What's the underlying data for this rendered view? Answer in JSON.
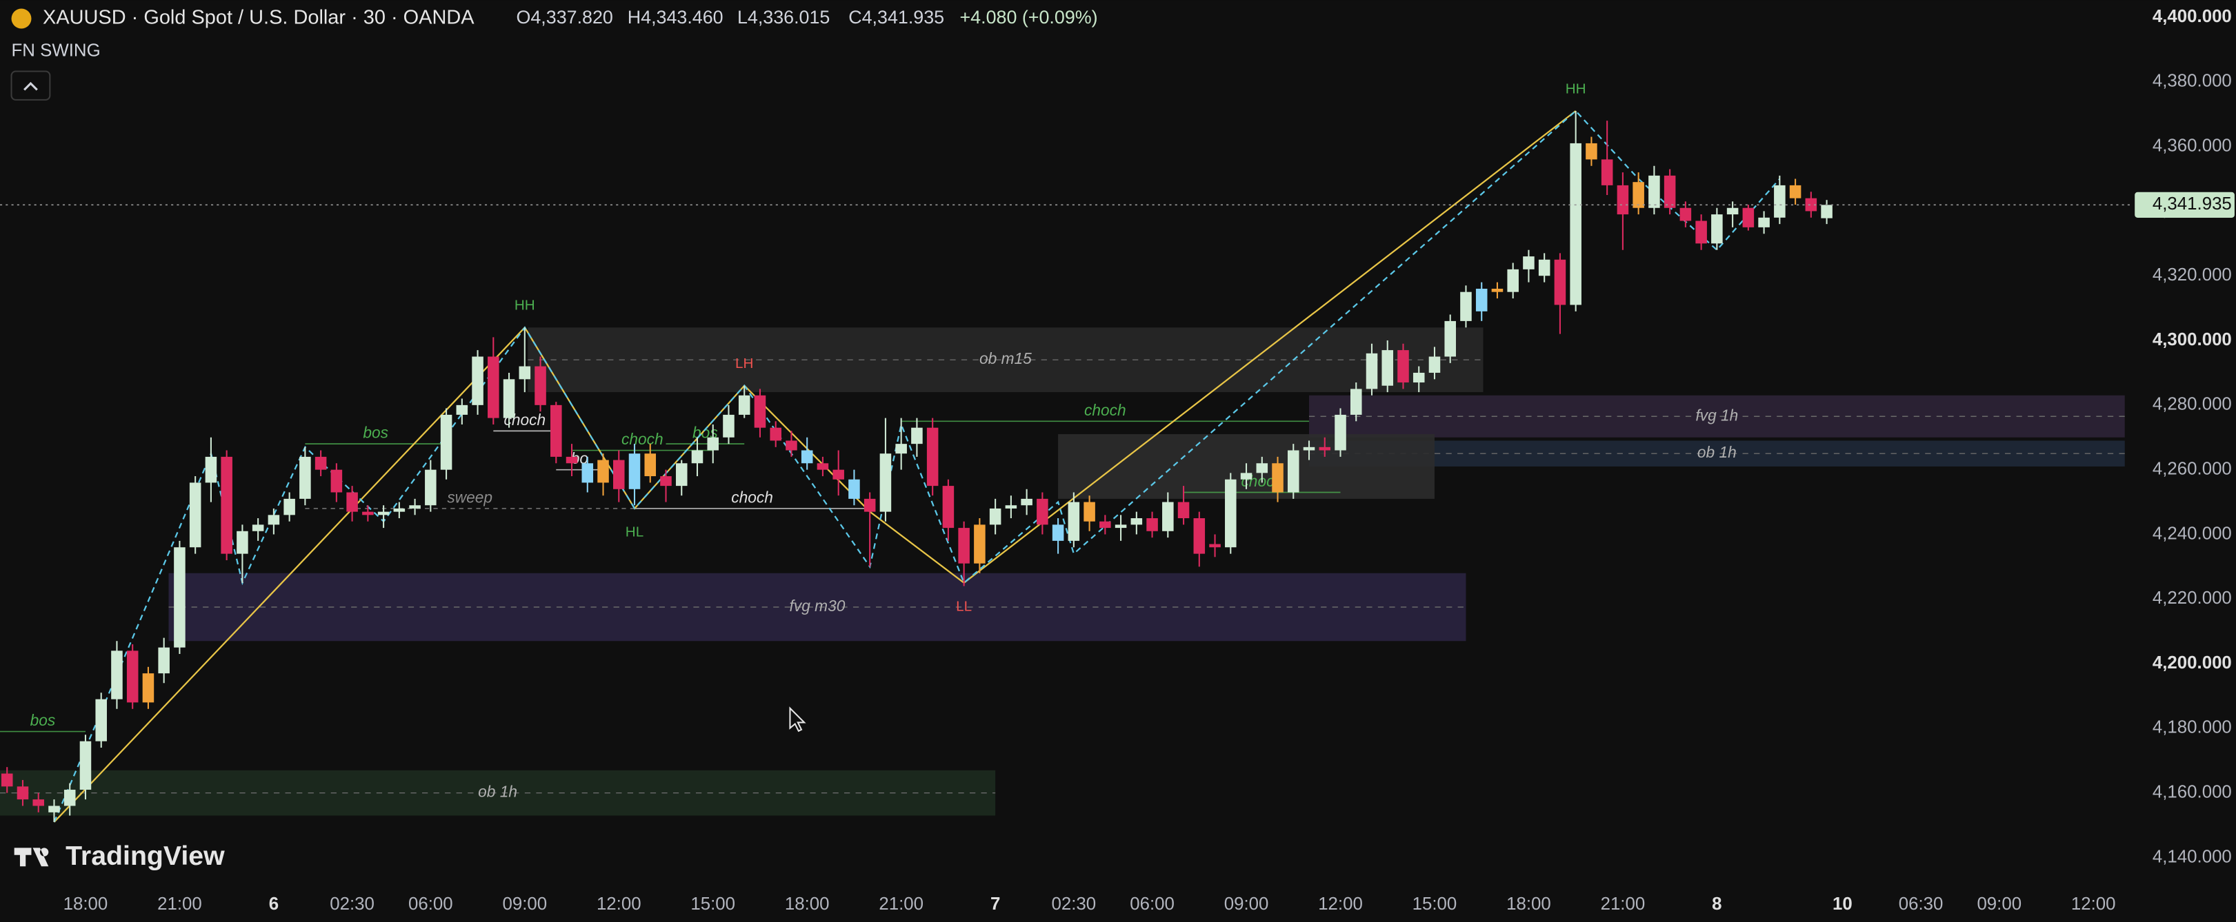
{
  "header": {
    "symbol": "XAUUSD · Gold Spot / U.S. Dollar · 30 · OANDA",
    "ohlc": [
      "O4,337.820",
      "H4,343.460",
      "L4,336.015",
      "C4,341.935"
    ],
    "change": "+4.080 (+0.09%)",
    "indicator": "FN SWING",
    "logo": "TradingView"
  },
  "chart_data": {
    "type": "candlestick",
    "xlim": [
      -5.45,
      130
    ],
    "ylim": [
      4132,
      4405.3
    ],
    "xticks": [
      {
        "value": 0,
        "label": "18:00"
      },
      {
        "value": 6,
        "label": "21:00"
      },
      {
        "value": 12,
        "label": "6"
      },
      {
        "value": 17,
        "label": "02:30"
      },
      {
        "value": 22,
        "label": "06:00"
      },
      {
        "value": 28,
        "label": "09:00"
      },
      {
        "value": 34,
        "label": "12:00"
      },
      {
        "value": 40,
        "label": "15:00"
      },
      {
        "value": 46,
        "label": "18:00"
      },
      {
        "value": 52,
        "label": "21:00"
      },
      {
        "value": 58,
        "label": "7"
      },
      {
        "value": 63,
        "label": "02:30"
      },
      {
        "value": 68,
        "label": "06:00"
      },
      {
        "value": 74,
        "label": "09:00"
      },
      {
        "value": 80,
        "label": "12:00"
      },
      {
        "value": 86,
        "label": "15:00"
      },
      {
        "value": 92,
        "label": "18:00"
      },
      {
        "value": 98,
        "label": "21:00"
      },
      {
        "value": 104,
        "label": "8"
      },
      {
        "value": 112,
        "label": "10"
      },
      {
        "value": 117,
        "label": "06:30"
      },
      {
        "value": 122,
        "label": "09:00"
      },
      {
        "value": 128,
        "label": "12:00"
      }
    ],
    "yticks": [
      {
        "value": 4140,
        "label": "4,140.000"
      },
      {
        "value": 4160,
        "label": "4,160.000"
      },
      {
        "value": 4180,
        "label": "4,180.000"
      },
      {
        "value": 4200,
        "label": "4,200.000"
      },
      {
        "value": 4220,
        "label": "4,220.000"
      },
      {
        "value": 4240,
        "label": "4,240.000"
      },
      {
        "value": 4260,
        "label": "4,260.000"
      },
      {
        "value": 4280,
        "label": "4,280.000"
      },
      {
        "value": 4300,
        "label": "4,300.000"
      },
      {
        "value": 4320,
        "label": "4,320.000"
      },
      {
        "value": 4340,
        "label": "4,340.000"
      },
      {
        "value": 4360,
        "label": "4,360.000"
      },
      {
        "value": 4380,
        "label": "4,380.000"
      },
      {
        "value": 4400,
        "label": "4,400.000"
      }
    ],
    "x": [
      -5,
      -4,
      -3,
      -2,
      -1,
      0,
      1,
      2,
      3,
      4,
      5,
      6,
      7,
      8,
      9,
      10,
      11,
      12,
      13,
      14,
      15,
      16,
      17,
      18,
      19,
      20,
      21,
      22,
      23,
      24,
      25,
      26,
      27,
      28,
      29,
      30,
      31,
      32,
      33,
      34,
      35,
      36,
      37,
      38,
      39,
      40,
      41,
      42,
      43,
      44,
      45,
      46,
      47,
      48,
      49,
      50,
      51,
      52,
      53,
      54,
      55,
      56,
      57,
      58,
      59,
      60,
      61,
      62,
      63,
      64,
      65,
      66,
      67,
      68,
      69,
      70,
      71,
      72,
      73,
      74,
      75,
      76,
      77,
      78,
      79,
      80,
      81,
      82,
      83,
      84,
      85,
      86,
      87,
      88,
      89,
      90,
      91,
      92,
      93,
      94,
      95,
      96,
      97,
      98,
      99,
      100,
      101,
      102,
      103,
      104,
      105,
      106,
      107,
      108,
      109,
      110,
      111
    ],
    "open": [
      4166,
      4162,
      4158,
      4154,
      4156,
      4161,
      4176,
      4189,
      4204,
      4188,
      4197,
      4205,
      4236,
      4256,
      4264,
      4234,
      4241,
      4243,
      4246,
      4251,
      4264,
      4260,
      4253,
      4247,
      4246,
      4247,
      4248,
      4249,
      4260,
      4277,
      4280,
      4295,
      4276,
      4288,
      4292,
      4280,
      4264,
      4262,
      4256,
      4263,
      4254,
      4265,
      4258,
      4255,
      4262,
      4266,
      4270,
      4277,
      4283,
      4273,
      4269,
      4266,
      4262,
      4260,
      4257,
      4251,
      4247,
      4265,
      4268,
      4273,
      4255,
      4242,
      4231,
      4243,
      4248,
      4249,
      4251,
      4243,
      4238,
      4250,
      4244,
      4242,
      4243,
      4245,
      4241,
      4250,
      4245,
      4237,
      4236,
      4257,
      4259,
      4262,
      4253,
      4266,
      4267,
      4266,
      4277,
      4285,
      4286,
      4297,
      4287,
      4290,
      4295,
      4306,
      4309,
      4316,
      4315,
      4322,
      4320,
      4325,
      4311,
      4361,
      4356,
      4348,
      4341,
      4341,
      4351,
      4341,
      4337,
      4330,
      4339,
      4341,
      4335,
      4338,
      4348,
      4344,
      4337.82
    ],
    "high": [
      4168,
      4164,
      4160,
      4158,
      4163,
      4178,
      4191,
      4207,
      4206,
      4199,
      4208,
      4238,
      4258,
      4270,
      4266,
      4243,
      4245,
      4248,
      4253,
      4267,
      4266,
      4262,
      4255,
      4249,
      4249,
      4250,
      4251,
      4263,
      4279,
      4282,
      4297,
      4301,
      4290,
      4304,
      4295,
      4281,
      4268,
      4264,
      4265,
      4266,
      4268,
      4268,
      4260,
      4263,
      4270,
      4274,
      4280,
      4286,
      4285,
      4275,
      4272,
      4270,
      4264,
      4266,
      4260,
      4253,
      4276,
      4276,
      4276,
      4276,
      4257,
      4244,
      4245,
      4251,
      4252,
      4254,
      4253,
      4245,
      4253,
      4252,
      4246,
      4246,
      4247,
      4247,
      4253,
      4255,
      4247,
      4240,
      4259,
      4262,
      4264,
      4264,
      4268,
      4269,
      4270,
      4279,
      4287,
      4299,
      4300,
      4299,
      4292,
      4298,
      4308,
      4317,
      4318,
      4318,
      4324,
      4328,
      4327,
      4327,
      4371,
      4363,
      4368,
      4352,
      4352,
      4354,
      4353,
      4343,
      4339,
      4341,
      4343,
      4342,
      4340,
      4351,
      4350,
      4346,
      4343.46
    ],
    "low": [
      4160,
      4156,
      4154,
      4151,
      4153,
      4158,
      4174,
      4186,
      4186,
      4186,
      4194,
      4203,
      4234,
      4250,
      4232,
      4225,
      4238,
      4240,
      4244,
      4249,
      4258,
      4250,
      4244,
      4244,
      4242,
      4245,
      4246,
      4247,
      4257,
      4274,
      4277,
      4274,
      4273,
      4284,
      4278,
      4262,
      4258,
      4253,
      4252,
      4250,
      4249,
      4256,
      4250,
      4252,
      4258,
      4262,
      4268,
      4276,
      4270,
      4267,
      4264,
      4260,
      4258,
      4252,
      4249,
      4230,
      4244,
      4260,
      4264,
      4252,
      4238,
      4224,
      4228,
      4240,
      4245,
      4246,
      4240,
      4234,
      4236,
      4241,
      4240,
      4238,
      4240,
      4239,
      4239,
      4243,
      4230,
      4233,
      4234,
      4254,
      4256,
      4250,
      4251,
      4263,
      4264,
      4264,
      4275,
      4283,
      4284,
      4285,
      4284,
      4288,
      4293,
      4304,
      4306,
      4313,
      4313,
      4318,
      4318,
      4302,
      4309,
      4354,
      4345,
      4328,
      4339,
      4339,
      4339,
      4335,
      4328,
      4328,
      4335,
      4334,
      4333,
      4336,
      4342,
      4338,
      4336.015
    ],
    "close": [
      4162,
      4158,
      4156,
      4156,
      4161,
      4176,
      4189,
      4204,
      4188,
      4197,
      4205,
      4236,
      4256,
      4264,
      4234,
      4241,
      4243,
      4246,
      4251,
      4264,
      4260,
      4253,
      4247,
      4246,
      4247,
      4248,
      4249,
      4260,
      4277,
      4280,
      4295,
      4276,
      4288,
      4292,
      4280,
      4264,
      4262,
      4256,
      4263,
      4254,
      4265,
      4258,
      4255,
      4262,
      4266,
      4270,
      4277,
      4283,
      4273,
      4269,
      4266,
      4262,
      4260,
      4257,
      4251,
      4247,
      4265,
      4268,
      4273,
      4255,
      4242,
      4231,
      4243,
      4248,
      4249,
      4251,
      4243,
      4238,
      4250,
      4244,
      4242,
      4243,
      4245,
      4241,
      4250,
      4245,
      4234,
      4236,
      4257,
      4259,
      4262,
      4253,
      4266,
      4267,
      4266,
      4277,
      4285,
      4296,
      4297,
      4287,
      4290,
      4295,
      4306,
      4315,
      4316,
      4315,
      4322,
      4326,
      4325,
      4311,
      4361,
      4356,
      4348,
      4339,
      4349,
      4351,
      4341,
      4337,
      4330,
      4339,
      4341,
      4335,
      4338,
      4348,
      4344,
      4340,
      4341.935
    ],
    "colors": [
      "#dd2a5f",
      "#dd2a5f",
      "#dd2a5f",
      "#d0ead5",
      "#d0ead5",
      "#d0ead5",
      "#d0ead5",
      "#d0ead5",
      "#dd2a5f",
      "#f2a23a",
      "#d0ead5",
      "#d0ead5",
      "#d0ead5",
      "#d0ead5",
      "#dd2a5f",
      "#d0ead5",
      "#d0ead5",
      "#d0ead5",
      "#d0ead5",
      "#d0ead5",
      "#dd2a5f",
      "#dd2a5f",
      "#dd2a5f",
      "#dd2a5f",
      "#d0ead5",
      "#d0ead5",
      "#d0ead5",
      "#d0ead5",
      "#d0ead5",
      "#d0ead5",
      "#d0ead5",
      "#dd2a5f",
      "#d0ead5",
      "#d0ead5",
      "#dd2a5f",
      "#dd2a5f",
      "#dd2a5f",
      "#8ad4f7",
      "#f2a23a",
      "#dd2a5f",
      "#8ad4f7",
      "#f2a23a",
      "#dd2a5f",
      "#d0ead5",
      "#d0ead5",
      "#d0ead5",
      "#d0ead5",
      "#d0ead5",
      "#dd2a5f",
      "#dd2a5f",
      "#dd2a5f",
      "#8ad4f7",
      "#dd2a5f",
      "#dd2a5f",
      "#8ad4f7",
      "#dd2a5f",
      "#d0ead5",
      "#d0ead5",
      "#d0ead5",
      "#dd2a5f",
      "#dd2a5f",
      "#dd2a5f",
      "#f2a23a",
      "#d0ead5",
      "#d0ead5",
      "#d0ead5",
      "#dd2a5f",
      "#8ad4f7",
      "#d0ead5",
      "#f2a23a",
      "#dd2a5f",
      "#d0ead5",
      "#d0ead5",
      "#dd2a5f",
      "#d0ead5",
      "#dd2a5f",
      "#dd2a5f",
      "#dd2a5f",
      "#d0ead5",
      "#d0ead5",
      "#d0ead5",
      "#f2a23a",
      "#d0ead5",
      "#d0ead5",
      "#dd2a5f",
      "#d0ead5",
      "#d0ead5",
      "#d0ead5",
      "#d0ead5",
      "#dd2a5f",
      "#d0ead5",
      "#d0ead5",
      "#d0ead5",
      "#d0ead5",
      "#8ad4f7",
      "#f2a23a",
      "#d0ead5",
      "#d0ead5",
      "#d0ead5",
      "#dd2a5f",
      "#d0ead5",
      "#f2a23a",
      "#dd2a5f",
      "#dd2a5f",
      "#f2a23a",
      "#d0ead5",
      "#dd2a5f",
      "#dd2a5f",
      "#dd2a5f",
      "#d0ead5",
      "#d0ead5",
      "#dd2a5f",
      "#d0ead5",
      "#d0ead5",
      "#f2a23a",
      "#dd2a5f",
      "#d0ead5"
    ],
    "last_price": {
      "value": 4341.935,
      "label": "4,341.935"
    },
    "last_price_color": "#c8e6c9",
    "zones": [
      {
        "label": "ob 1h",
        "x": [
          -5.45,
          58
        ],
        "y": [
          4153,
          4167
        ],
        "color": "#1d2b1f"
      },
      {
        "label": "fvg m30",
        "x": [
          5.3,
          88
        ],
        "y": [
          4207,
          4228
        ],
        "color": "#2a2340"
      },
      {
        "label": "ob m15",
        "x": [
          28.2,
          89.1
        ],
        "y": [
          4284,
          4304
        ],
        "color": "#282828"
      },
      {
        "label": "fvg 1h",
        "x": [
          78,
          130
        ],
        "y": [
          4270,
          4283
        ],
        "color": "#2e2437"
      },
      {
        "label": "ob 1h",
        "x": [
          78,
          130
        ],
        "y": [
          4261,
          4269
        ],
        "color": "#1f2938"
      }
    ],
    "extra_zone": {
      "x": [
        62,
        86
      ],
      "y": [
        4251,
        4271
      ],
      "color": "#2c2c2c"
    },
    "swing_lines": [
      {
        "color": "#e8c547",
        "dashed": false,
        "x": [
          -2,
          28,
          35,
          42,
          50,
          56,
          95
        ],
        "values": [
          4151,
          4304,
          4248,
          4286,
          4247,
          4225,
          4371
        ]
      },
      {
        "color": "#5bc8e8",
        "dashed": true,
        "x": [
          -2,
          8,
          10,
          14,
          19,
          28,
          35,
          42,
          50,
          52,
          56,
          62,
          63,
          95,
          99,
          104,
          108
        ],
        "values": [
          4151,
          4265,
          4225,
          4267,
          4244,
          4304,
          4248,
          4286,
          4230,
          4274,
          4225,
          4250,
          4234,
          4371,
          4350,
          4328,
          4350
        ]
      }
    ],
    "structure": [
      {
        "text": "bos",
        "color": "#4caf50",
        "dashed": false,
        "x": [
          -5.45,
          0
        ],
        "y": 4179
      },
      {
        "text": "bos",
        "color": "#4caf50",
        "dashed": false,
        "x": [
          14,
          23
        ],
        "y": 4268
      },
      {
        "text": "sweep",
        "color": "#8a8a8a",
        "dashed": true,
        "x": [
          14,
          35
        ],
        "y": 4248
      },
      {
        "text": "choch",
        "color": "#e0e0e0",
        "dashed": false,
        "x": [
          35,
          50
        ],
        "y": 4248
      },
      {
        "text": "choch",
        "color": "#e0e0e0",
        "dashed": false,
        "x": [
          26,
          30
        ],
        "y": 4272
      },
      {
        "text": "bo",
        "color": "#e0e0e0",
        "dashed": false,
        "x": [
          30,
          33
        ],
        "y": 4260
      },
      {
        "text": "choch",
        "color": "#4caf50",
        "dashed": false,
        "x": [
          31,
          40
        ],
        "y": 4266
      },
      {
        "text": "bos",
        "color": "#4caf50",
        "dashed": false,
        "x": [
          37,
          42
        ],
        "y": 4268
      },
      {
        "text": "choch",
        "color": "#4caf50",
        "dashed": false,
        "x": [
          52,
          78
        ],
        "y": 4275
      },
      {
        "text": "choch",
        "color": "#4caf50",
        "dashed": false,
        "x": [
          70,
          80
        ],
        "y": 4253
      }
    ],
    "pivots": [
      {
        "text": "HH",
        "x": 28,
        "y": 4304,
        "color": "#4caf50",
        "above": true
      },
      {
        "text": "HL",
        "x": 35,
        "y": 4248,
        "color": "#4caf50",
        "above": false
      },
      {
        "text": "LH",
        "x": 42,
        "y": 4286,
        "color": "#ef5350",
        "above": true
      },
      {
        "text": "LL",
        "x": 56,
        "y": 4225,
        "color": "#ef5350",
        "above": false
      },
      {
        "text": "HH",
        "x": 95,
        "y": 4371,
        "color": "#4caf50",
        "above": true
      }
    ]
  }
}
